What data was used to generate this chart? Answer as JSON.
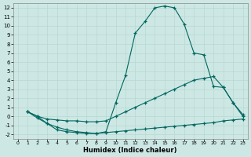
{
  "xlabel": "Humidex (Indice chaleur)",
  "background_color": "#cde8e4",
  "line_color": "#006660",
  "xlim": [
    -0.5,
    23.5
  ],
  "ylim": [
    -2.5,
    12.5
  ],
  "xticks": [
    0,
    1,
    2,
    3,
    4,
    5,
    6,
    7,
    8,
    9,
    10,
    11,
    12,
    13,
    14,
    15,
    16,
    17,
    18,
    19,
    20,
    21,
    22,
    23
  ],
  "yticks": [
    -2,
    -1,
    0,
    1,
    2,
    3,
    4,
    5,
    6,
    7,
    8,
    9,
    10,
    11,
    12
  ],
  "series": [
    {
      "x": [
        1,
        2,
        3,
        4,
        5,
        6,
        7,
        8,
        9,
        10,
        11,
        12,
        13,
        14,
        15,
        16,
        17,
        18,
        19,
        20,
        21,
        22,
        23
      ],
      "y": [
        0.5,
        -0.2,
        -0.8,
        -1.2,
        -1.5,
        -1.7,
        -1.8,
        -1.9,
        -1.7,
        1.5,
        4.5,
        9.2,
        10.5,
        12.0,
        12.2,
        12.0,
        10.2,
        7.0,
        6.8,
        3.3,
        3.2,
        1.5,
        0.0
      ]
    },
    {
      "x": [
        1,
        2,
        3,
        4,
        5,
        6,
        7,
        8,
        9,
        10,
        11,
        12,
        13,
        14,
        15,
        16,
        17,
        18,
        19,
        20,
        21,
        22,
        23
      ],
      "y": [
        0.5,
        0.0,
        -0.3,
        -0.4,
        -0.5,
        -0.5,
        -0.6,
        -0.6,
        -0.5,
        0.0,
        0.5,
        1.0,
        1.5,
        2.0,
        2.5,
        3.0,
        3.5,
        4.0,
        4.2,
        4.4,
        3.2,
        1.5,
        0.2
      ]
    },
    {
      "x": [
        1,
        2,
        3,
        4,
        5,
        6,
        7,
        8,
        9,
        10,
        11,
        12,
        13,
        14,
        15,
        16,
        17,
        18,
        19,
        20,
        21,
        22,
        23
      ],
      "y": [
        0.5,
        0.0,
        -0.8,
        -1.5,
        -1.7,
        -1.8,
        -1.9,
        -1.9,
        -1.8,
        -1.7,
        -1.6,
        -1.5,
        -1.4,
        -1.3,
        -1.2,
        -1.1,
        -1.0,
        -0.9,
        -0.8,
        -0.7,
        -0.5,
        -0.4,
        -0.3
      ]
    }
  ]
}
